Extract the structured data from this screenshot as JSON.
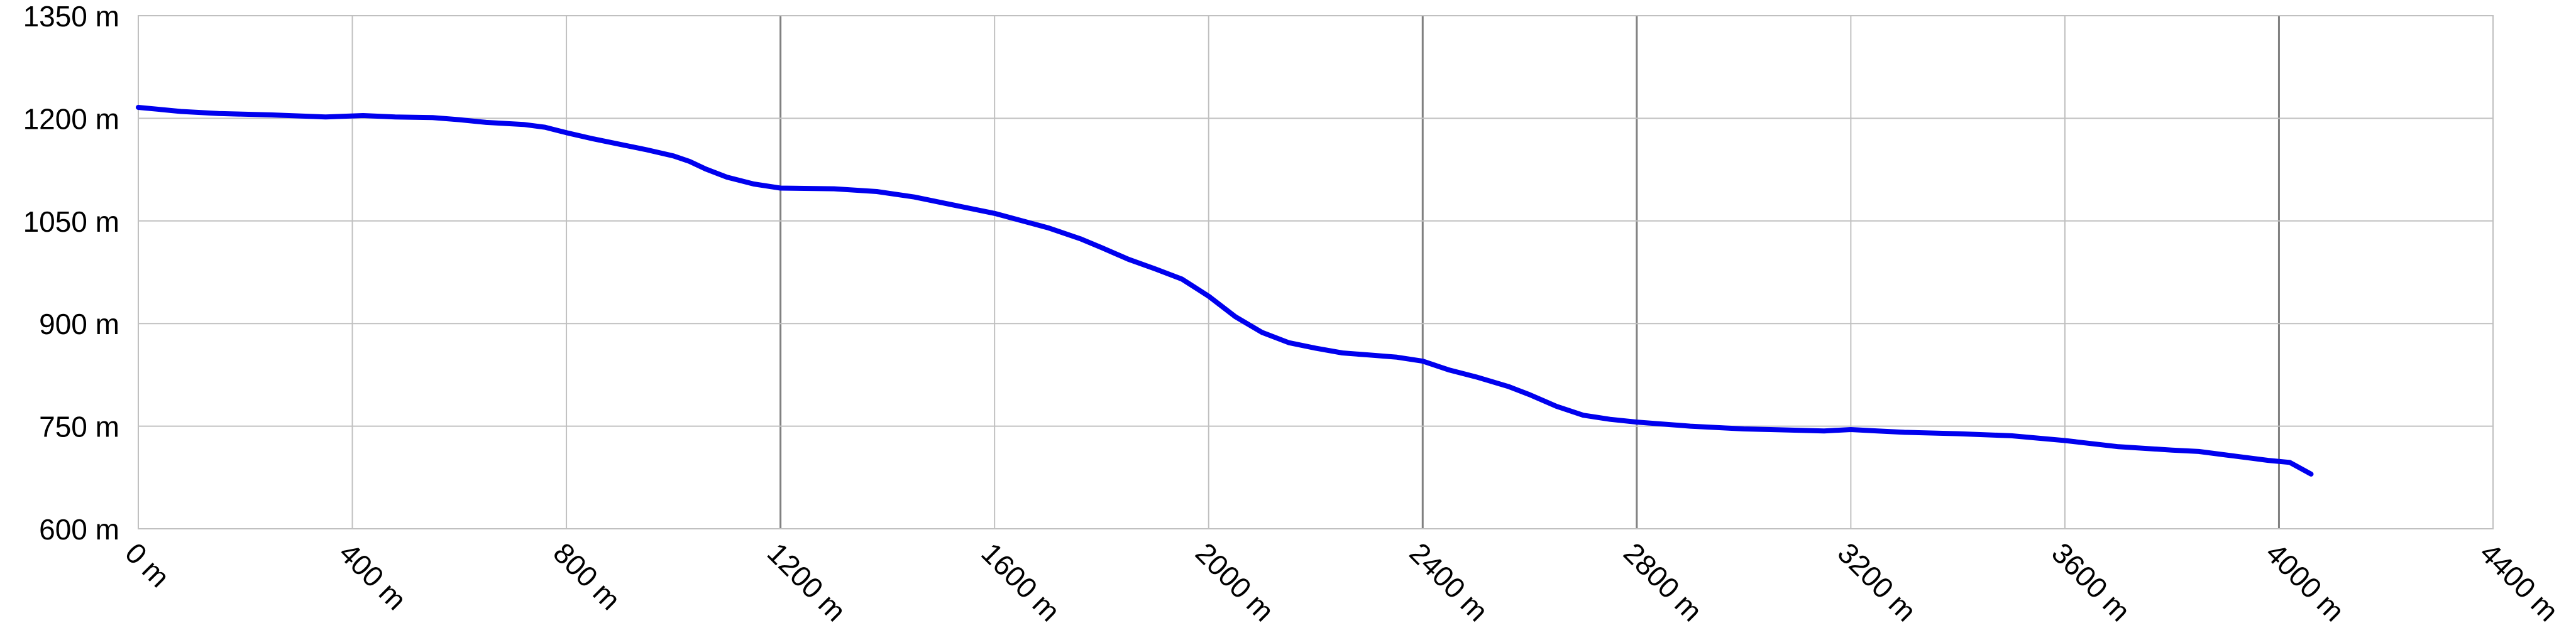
{
  "chart_data": {
    "type": "line",
    "title": "",
    "xlabel": "",
    "ylabel": "",
    "xlim": [
      0,
      4400
    ],
    "ylim": [
      600,
      1350
    ],
    "x_ticks": [
      {
        "value": 0,
        "label": "0 m"
      },
      {
        "value": 400,
        "label": "400 m"
      },
      {
        "value": 800,
        "label": "800 m"
      },
      {
        "value": 1200,
        "label": "1200 m"
      },
      {
        "value": 1600,
        "label": "1600 m"
      },
      {
        "value": 2000,
        "label": "2000 m"
      },
      {
        "value": 2400,
        "label": "2400 m"
      },
      {
        "value": 2800,
        "label": "2800 m"
      },
      {
        "value": 3200,
        "label": "3200 m"
      },
      {
        "value": 3600,
        "label": "3600 m"
      },
      {
        "value": 4000,
        "label": "4000 m"
      },
      {
        "value": 4400,
        "label": "4400 m"
      }
    ],
    "y_ticks": [
      {
        "value": 600,
        "label": "600 m"
      },
      {
        "value": 750,
        "label": "750 m"
      },
      {
        "value": 900,
        "label": "900 m"
      },
      {
        "value": 1050,
        "label": "1050 m"
      },
      {
        "value": 1200,
        "label": "1200 m"
      },
      {
        "value": 1350,
        "label": "1350 m"
      }
    ],
    "major_x_gridlines": [
      1200,
      2400,
      2800,
      4000
    ],
    "grid": true,
    "legend": "none",
    "series": [
      {
        "color": "#0000ee",
        "points": [
          [
            0,
            1216
          ],
          [
            40,
            1213
          ],
          [
            80,
            1210
          ],
          [
            150,
            1207
          ],
          [
            250,
            1205
          ],
          [
            350,
            1202
          ],
          [
            420,
            1204
          ],
          [
            480,
            1202
          ],
          [
            550,
            1201
          ],
          [
            600,
            1198
          ],
          [
            650,
            1194
          ],
          [
            720,
            1191
          ],
          [
            760,
            1187
          ],
          [
            800,
            1179
          ],
          [
            850,
            1170
          ],
          [
            900,
            1162
          ],
          [
            950,
            1154
          ],
          [
            1000,
            1145
          ],
          [
            1030,
            1137
          ],
          [
            1060,
            1126
          ],
          [
            1100,
            1114
          ],
          [
            1150,
            1104
          ],
          [
            1200,
            1098
          ],
          [
            1300,
            1097
          ],
          [
            1380,
            1093
          ],
          [
            1450,
            1085
          ],
          [
            1500,
            1077
          ],
          [
            1600,
            1061
          ],
          [
            1700,
            1040
          ],
          [
            1760,
            1024
          ],
          [
            1800,
            1011
          ],
          [
            1850,
            994
          ],
          [
            1900,
            980
          ],
          [
            1950,
            965
          ],
          [
            2000,
            940
          ],
          [
            2050,
            910
          ],
          [
            2100,
            887
          ],
          [
            2150,
            872
          ],
          [
            2200,
            864
          ],
          [
            2250,
            857
          ],
          [
            2300,
            854
          ],
          [
            2350,
            851
          ],
          [
            2400,
            845
          ],
          [
            2450,
            832
          ],
          [
            2500,
            822
          ],
          [
            2560,
            808
          ],
          [
            2600,
            796
          ],
          [
            2650,
            779
          ],
          [
            2700,
            766
          ],
          [
            2750,
            760
          ],
          [
            2800,
            756
          ],
          [
            2900,
            750
          ],
          [
            3000,
            746
          ],
          [
            3050,
            745
          ],
          [
            3100,
            744
          ],
          [
            3150,
            743
          ],
          [
            3200,
            745
          ],
          [
            3250,
            743
          ],
          [
            3300,
            741
          ],
          [
            3400,
            739
          ],
          [
            3500,
            736
          ],
          [
            3600,
            729
          ],
          [
            3700,
            720
          ],
          [
            3800,
            715
          ],
          [
            3850,
            713
          ],
          [
            3900,
            708
          ],
          [
            3950,
            703
          ],
          [
            3980,
            700
          ],
          [
            4020,
            697
          ],
          [
            4060,
            680
          ]
        ]
      }
    ]
  }
}
